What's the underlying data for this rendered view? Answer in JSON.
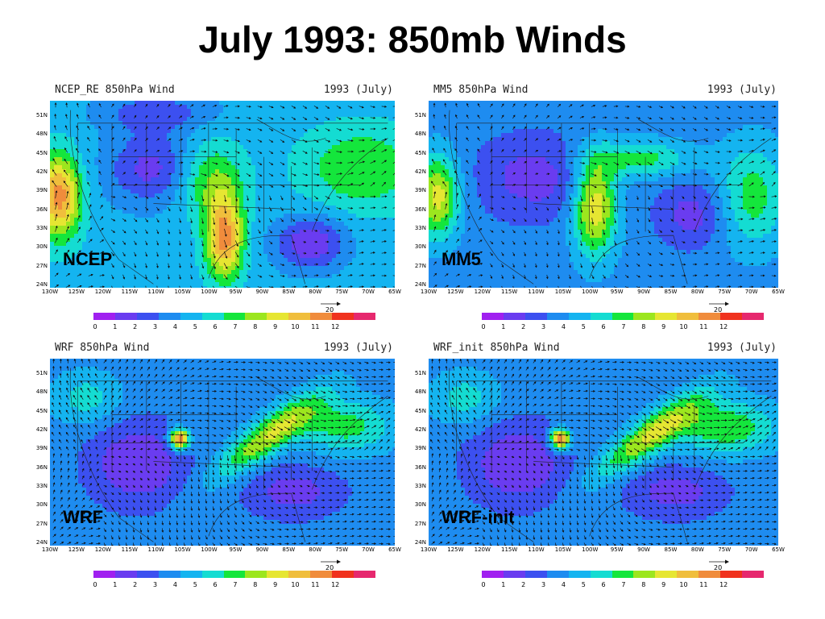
{
  "title": "July 1993: 850mb Winds",
  "panels": [
    {
      "id": "ncep",
      "header_left": "NCEP_RE 850hPa Wind",
      "header_right": "1993 (July)",
      "label": "NCEP"
    },
    {
      "id": "mm5",
      "header_left": "MM5 850hPa Wind",
      "header_right": "1993 (July)",
      "label": "MM5"
    },
    {
      "id": "wrf",
      "header_left": "WRF 850hPa Wind",
      "header_right": "1993 (July)",
      "label": "WRF"
    },
    {
      "id": "wrfinit",
      "header_left": "WRF_init 850hPa Wind",
      "header_right": "1993 (July)",
      "label": "WRF-init"
    }
  ],
  "latitude_labels": [
    "51N",
    "48N",
    "45N",
    "42N",
    "39N",
    "36N",
    "33N",
    "30N",
    "27N",
    "24N"
  ],
  "longitude_labels": [
    "130W",
    "125W",
    "120W",
    "115W",
    "110W",
    "105W",
    "100W",
    "95W",
    "90W",
    "85W",
    "80W",
    "75W",
    "70W",
    "65W"
  ],
  "colorbar": {
    "ticks": [
      "0",
      "1",
      "2",
      "3",
      "4",
      "5",
      "6",
      "7",
      "8",
      "9",
      "10",
      "11",
      "12"
    ],
    "colors": [
      "#a020f0",
      "#6a3cf0",
      "#3c50f0",
      "#1e8cf0",
      "#14b4f0",
      "#14dcd2",
      "#14e63c",
      "#9ce61e",
      "#e6e632",
      "#f0be3c",
      "#f08c3c",
      "#f0321e",
      "#e6286e"
    ],
    "reference_vector": "20"
  },
  "figure": {
    "type": "map-panels",
    "projection": "lat-lon",
    "lon_range": [
      "130W",
      "65W"
    ],
    "lat_range": [
      "24N",
      "51N"
    ],
    "variable": "850hPa wind speed (shaded) and vectors",
    "colorbar_range": [
      0,
      12
    ]
  }
}
